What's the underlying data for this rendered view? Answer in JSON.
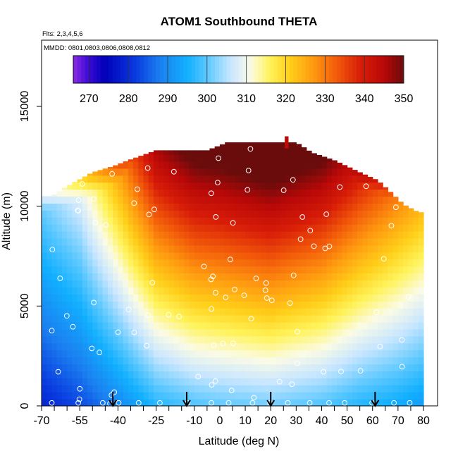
{
  "chart_data": {
    "type": "heatmap",
    "title": "ATOM1 Southbound THETA",
    "flights_label": "Flts: 2,3,4,5,6",
    "dates_label": "MMDD: 0801,0803,0806,0808,0812",
    "xlabel": "Latitude (deg N)",
    "ylabel": "Altitude (m)",
    "xlim": [
      -70,
      84
    ],
    "ylim": [
      0,
      17500
    ],
    "x_ticks_major": [
      -70,
      -55,
      -40,
      -25,
      -10,
      0,
      10,
      20,
      30,
      40,
      50,
      60,
      70,
      80
    ],
    "x_tick_labels": [
      "-70",
      "-55",
      "-40",
      "-25",
      "-10",
      "0",
      "10",
      "20",
      "30",
      "40",
      "50",
      "60",
      "70",
      "80"
    ],
    "x_ticks_minor": [
      -65,
      -60,
      -50,
      -45,
      -35,
      -30,
      -20,
      -15,
      -5,
      5,
      15,
      25,
      35,
      45,
      55,
      65,
      75
    ],
    "y_ticks": [
      0,
      5000,
      10000,
      15000
    ],
    "y_tick_labels": [
      "0",
      "5000",
      "10000",
      "15000"
    ],
    "colorbar": {
      "min": 266,
      "max": 350,
      "ticks": [
        270,
        280,
        290,
        300,
        310,
        320,
        330,
        340,
        350
      ],
      "tick_labels": [
        "270",
        "280",
        "290",
        "300",
        "310",
        "320",
        "330",
        "340",
        "350"
      ],
      "stops": [
        {
          "v": 266,
          "c": "#8b2be2"
        },
        {
          "v": 270,
          "c": "#3a0ad6"
        },
        {
          "v": 274,
          "c": "#0000b8"
        },
        {
          "v": 282,
          "c": "#0a3ce0"
        },
        {
          "v": 288,
          "c": "#1b7ff0"
        },
        {
          "v": 295,
          "c": "#12b0ff"
        },
        {
          "v": 300,
          "c": "#5cc8ff"
        },
        {
          "v": 306,
          "c": "#c8e6ff"
        },
        {
          "v": 311,
          "c": "#fbfbe6"
        },
        {
          "v": 316,
          "c": "#fff35a"
        },
        {
          "v": 321,
          "c": "#ffcf1a"
        },
        {
          "v": 327,
          "c": "#ff9a10"
        },
        {
          "v": 333,
          "c": "#f25a0a"
        },
        {
          "v": 339,
          "c": "#d81d08"
        },
        {
          "v": 345,
          "c": "#b80808"
        },
        {
          "v": 350,
          "c": "#6a0c0c"
        }
      ]
    },
    "arrows_latitude": [
      -42,
      -13,
      20,
      61
    ],
    "arrow_color": "#000000",
    "point_marker_color": "#ffffff"
  }
}
